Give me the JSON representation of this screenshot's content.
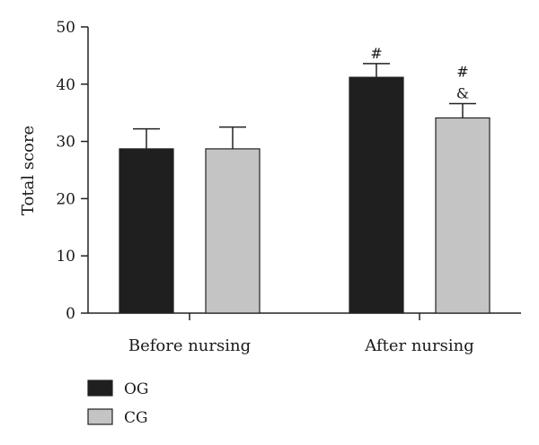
{
  "chart_data": {
    "type": "bar",
    "title": "",
    "xlabel": "",
    "ylabel": "Total score",
    "ylim": [
      0,
      50
    ],
    "yticks": [
      0,
      10,
      20,
      30,
      40,
      50
    ],
    "categories": [
      "Before nursing",
      "After nursing"
    ],
    "series": [
      {
        "name": "OG",
        "values": [
          28.7,
          41.2
        ],
        "errors": [
          3.5,
          2.4
        ],
        "color": "#1f1f1f"
      },
      {
        "name": "CG",
        "values": [
          28.7,
          34.1
        ],
        "errors": [
          3.8,
          2.5
        ],
        "color": "#c4c4c4"
      }
    ],
    "annotations": [
      {
        "series": 0,
        "category": 1,
        "lines": [
          "#"
        ]
      },
      {
        "series": 1,
        "category": 1,
        "lines": [
          "#",
          "&"
        ]
      }
    ],
    "legend_position": "bottom-left",
    "grid": false
  }
}
